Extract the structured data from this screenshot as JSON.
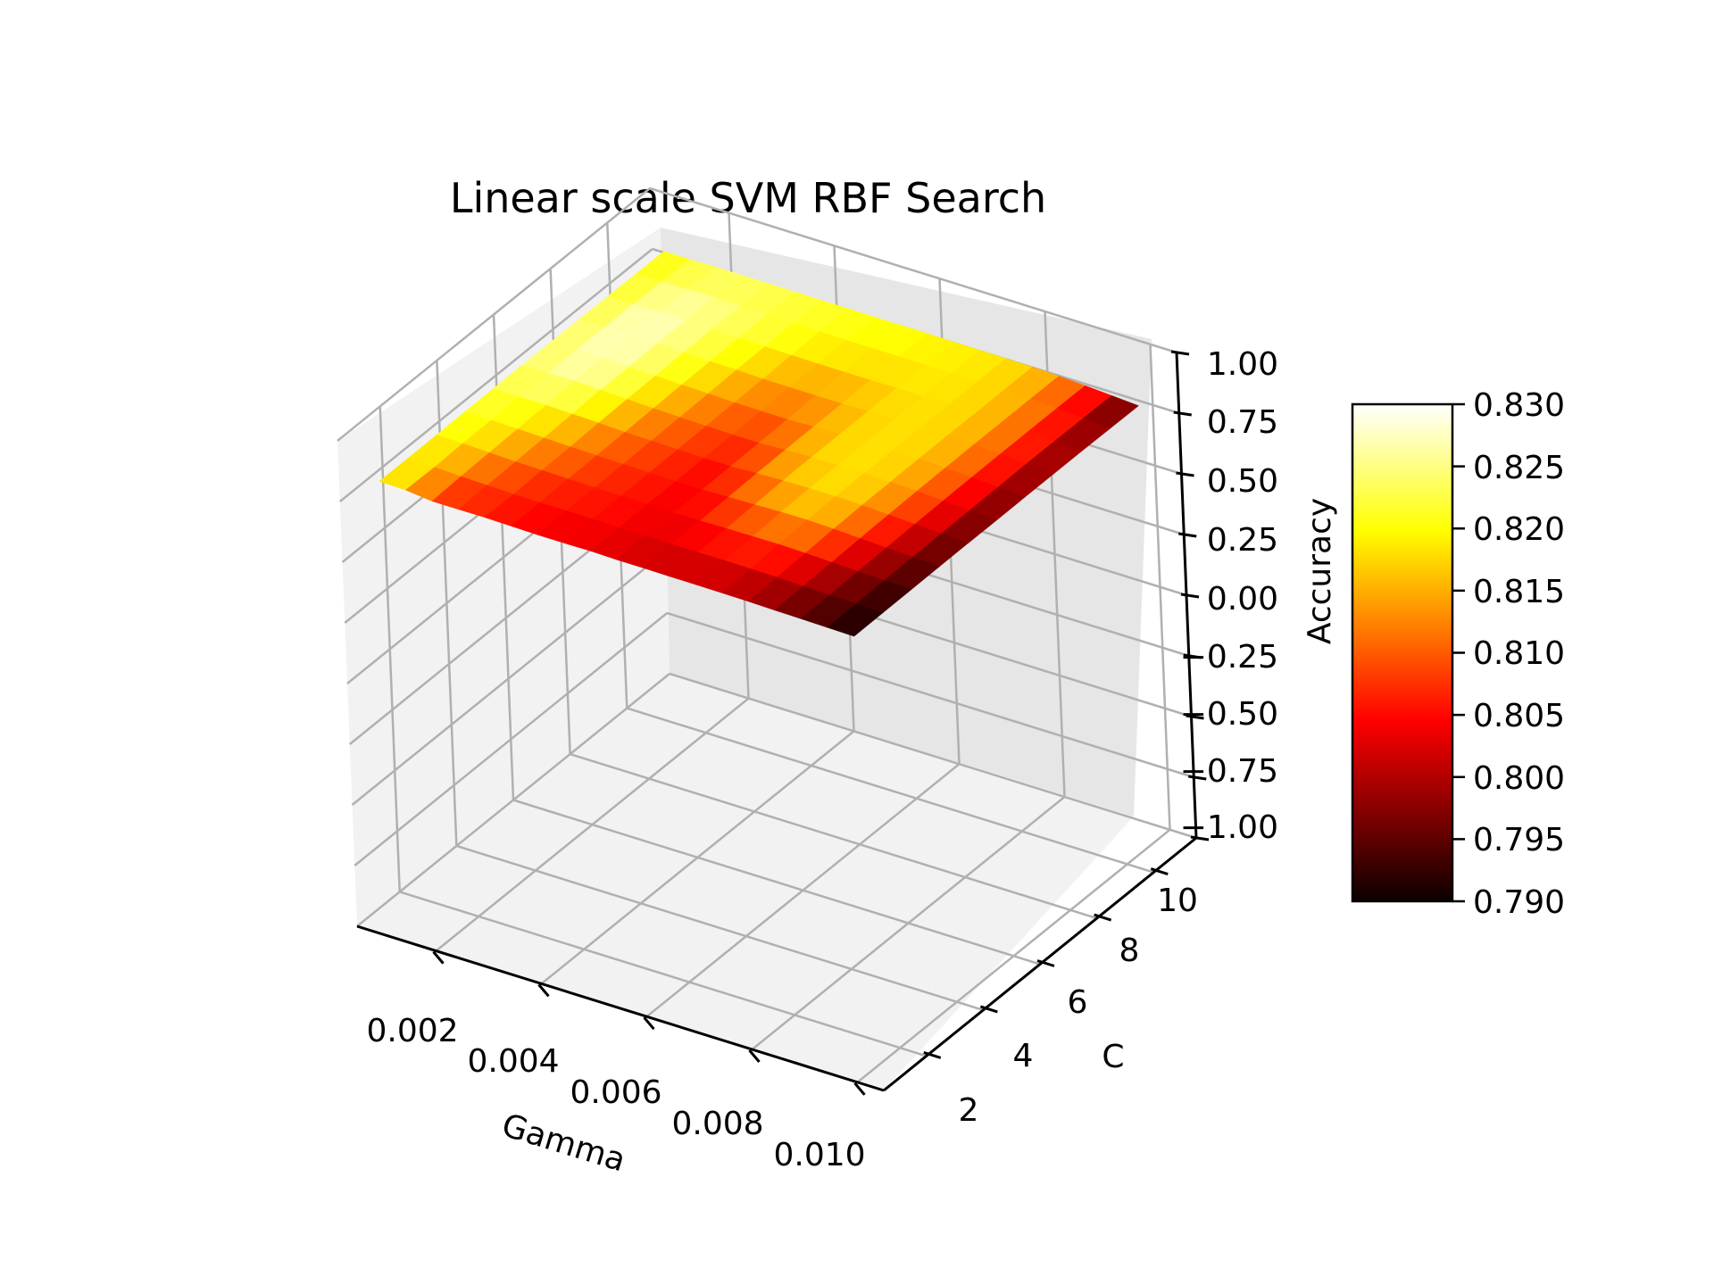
{
  "chart_data": {
    "type": "surface3d",
    "title": "Linear scale SVM RBF Search",
    "xlabel": "Gamma",
    "ylabel": "C",
    "zlabel": "Accuracy",
    "xlim": [
      0.0005,
      0.0105
    ],
    "ylim": [
      0.5,
      11.5
    ],
    "zlim": [
      -1.0,
      1.0
    ],
    "x_ticks": [
      "0.002",
      "0.004",
      "0.006",
      "0.008",
      "0.010"
    ],
    "y_ticks": [
      "2",
      "4",
      "6",
      "8",
      "10"
    ],
    "z_ticks": [
      "1.00",
      "0.75",
      "0.50",
      "0.25",
      "0.00",
      "−0.25",
      "−0.50",
      "−0.75",
      "−1.00"
    ],
    "colormap": "hot",
    "colorbar": {
      "range": [
        0.79,
        0.83
      ],
      "ticks": [
        "0.830",
        "0.825",
        "0.820",
        "0.815",
        "0.810",
        "0.805",
        "0.800",
        "0.795",
        "0.790"
      ]
    },
    "gamma": [
      0.001,
      0.0015,
      0.002,
      0.0025,
      0.003,
      0.0035,
      0.004,
      0.0045,
      0.005,
      0.0055,
      0.006,
      0.0065,
      0.007,
      0.0075,
      0.008,
      0.0085,
      0.009,
      0.0095,
      0.01
    ],
    "C": [
      1,
      2,
      3,
      4,
      5,
      6,
      7,
      8,
      9,
      10,
      11
    ],
    "accuracy": [
      [
        0.82,
        0.818,
        0.806,
        0.806,
        0.807,
        0.805,
        0.803,
        0.803,
        0.804,
        0.802,
        0.802,
        0.801,
        0.801,
        0.8,
        0.799,
        0.797,
        0.795,
        0.793,
        0.791
      ],
      [
        0.819,
        0.816,
        0.811,
        0.809,
        0.806,
        0.805,
        0.806,
        0.805,
        0.804,
        0.803,
        0.803,
        0.803,
        0.804,
        0.803,
        0.802,
        0.799,
        0.797,
        0.794,
        0.792
      ],
      [
        0.82,
        0.819,
        0.815,
        0.811,
        0.81,
        0.808,
        0.806,
        0.806,
        0.805,
        0.804,
        0.805,
        0.807,
        0.808,
        0.809,
        0.807,
        0.803,
        0.799,
        0.796,
        0.793
      ],
      [
        0.821,
        0.82,
        0.818,
        0.815,
        0.812,
        0.81,
        0.808,
        0.807,
        0.805,
        0.804,
        0.808,
        0.811,
        0.814,
        0.815,
        0.812,
        0.807,
        0.802,
        0.798,
        0.794
      ],
      [
        0.822,
        0.822,
        0.821,
        0.819,
        0.816,
        0.812,
        0.81,
        0.808,
        0.806,
        0.806,
        0.811,
        0.815,
        0.817,
        0.818,
        0.815,
        0.81,
        0.805,
        0.8,
        0.795
      ],
      [
        0.823,
        0.825,
        0.826,
        0.823,
        0.819,
        0.815,
        0.812,
        0.81,
        0.808,
        0.808,
        0.813,
        0.817,
        0.818,
        0.818,
        0.816,
        0.812,
        0.807,
        0.801,
        0.795
      ],
      [
        0.823,
        0.826,
        0.827,
        0.825,
        0.821,
        0.818,
        0.815,
        0.812,
        0.811,
        0.811,
        0.814,
        0.817,
        0.818,
        0.818,
        0.817,
        0.813,
        0.808,
        0.802,
        0.796
      ],
      [
        0.822,
        0.826,
        0.828,
        0.826,
        0.823,
        0.82,
        0.818,
        0.815,
        0.814,
        0.814,
        0.815,
        0.817,
        0.818,
        0.818,
        0.817,
        0.814,
        0.809,
        0.803,
        0.796
      ],
      [
        0.821,
        0.825,
        0.827,
        0.826,
        0.824,
        0.822,
        0.82,
        0.818,
        0.817,
        0.817,
        0.817,
        0.818,
        0.818,
        0.818,
        0.817,
        0.814,
        0.809,
        0.803,
        0.796
      ],
      [
        0.82,
        0.823,
        0.825,
        0.825,
        0.824,
        0.823,
        0.822,
        0.821,
        0.82,
        0.82,
        0.819,
        0.819,
        0.819,
        0.818,
        0.817,
        0.814,
        0.809,
        0.802,
        0.795
      ],
      [
        0.82,
        0.821,
        0.822,
        0.822,
        0.822,
        0.822,
        0.821,
        0.821,
        0.82,
        0.82,
        0.82,
        0.819,
        0.819,
        0.818,
        0.817,
        0.813,
        0.808,
        0.801,
        0.794
      ]
    ]
  }
}
